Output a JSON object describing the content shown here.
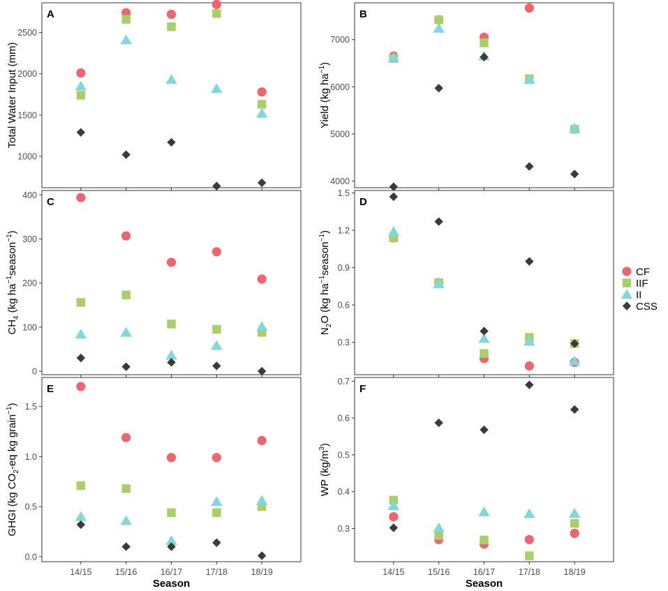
{
  "chart_data": {
    "type": "scatter",
    "seasons": [
      "14/15",
      "15/16",
      "16/17",
      "17/18",
      "18/19"
    ],
    "xlabel": "Season",
    "legend": {
      "position": "right",
      "entries": [
        {
          "name": "CF",
          "shape": "circle",
          "color": "#F0646E"
        },
        {
          "name": "IIF",
          "shape": "square",
          "color": "#A8D066"
        },
        {
          "name": "II",
          "shape": "triangle",
          "color": "#7FD8DB"
        },
        {
          "name": "CSS",
          "shape": "diamond",
          "color": "#3A3A3A"
        }
      ]
    },
    "panels": [
      {
        "tag": "A",
        "ylabel": "Total Water Input (mm)",
        "ylim": [
          620,
          2860
        ],
        "yticks": [
          1000,
          1500,
          2000,
          2500
        ],
        "ytick_labels": [
          "1000",
          "1500",
          "2000",
          "2500"
        ],
        "series": [
          {
            "name": "CF",
            "values": [
              2010,
              2740,
              2720,
              2840,
              1780
            ]
          },
          {
            "name": "IIF",
            "values": [
              1740,
              2660,
              2570,
              2730,
              1630
            ]
          },
          {
            "name": "II",
            "values": [
              1850,
              2410,
              1930,
              1820,
              1520
            ]
          },
          {
            "name": "CSS",
            "values": [
              1290,
              1020,
              1170,
              640,
              680
            ]
          }
        ]
      },
      {
        "tag": "B",
        "ylabel": "Yield (kg ha⁻¹)",
        "ylabel_parts": [
          {
            "t": "Yield (kg ha"
          },
          {
            "t": "−1",
            "sup": true
          },
          {
            "t": ")"
          }
        ],
        "ylim": [
          3860,
          7780
        ],
        "yticks": [
          4000,
          5000,
          6000,
          7000
        ],
        "ytick_labels": [
          "4000",
          "5000",
          "6000",
          "7000"
        ],
        "series": [
          {
            "name": "CF",
            "values": [
              6650,
              7420,
              7050,
              7670,
              5100
            ]
          },
          {
            "name": "IIF",
            "values": [
              6600,
              7420,
              6930,
              6170,
              5100
            ]
          },
          {
            "name": "II",
            "values": [
              6620,
              7240,
              6650,
              6150,
              5120
            ]
          },
          {
            "name": "CSS",
            "values": [
              3880,
              5970,
              6630,
              4310,
              4150
            ]
          }
        ]
      },
      {
        "tag": "C",
        "ylabel": "CH₄ (kg ha⁻¹season⁻¹)",
        "ylabel_parts": [
          {
            "t": "CH"
          },
          {
            "t": "4",
            "sub": true
          },
          {
            "t": " (kg ha"
          },
          {
            "t": "−1",
            "sup": true
          },
          {
            "t": "season"
          },
          {
            "t": "−1",
            "sup": true
          },
          {
            "t": ")"
          }
        ],
        "ylim": [
          -8,
          410
        ],
        "yticks": [
          0,
          100,
          200,
          300,
          400
        ],
        "ytick_labels": [
          "0",
          "100",
          "200",
          "300",
          "400"
        ],
        "series": [
          {
            "name": "CF",
            "values": [
              394,
              307,
              247,
              271,
              209
            ]
          },
          {
            "name": "IIF",
            "values": [
              156,
              173,
              107,
              95,
              88
            ]
          },
          {
            "name": "II",
            "values": [
              84,
              88,
              36,
              58,
              101
            ]
          },
          {
            "name": "CSS",
            "values": [
              30,
              10,
              20,
              12,
              0
            ]
          }
        ]
      },
      {
        "tag": "D",
        "ylabel": "N₂O (kg ha⁻¹season⁻¹)",
        "ylabel_parts": [
          {
            "t": "N"
          },
          {
            "t": "2",
            "sub": true
          },
          {
            "t": "O (kg ha"
          },
          {
            "t": "−1",
            "sup": true
          },
          {
            "t": "season"
          },
          {
            "t": "−1",
            "sup": true
          },
          {
            "t": ")"
          }
        ],
        "ylim": [
          0.04,
          1.52
        ],
        "yticks": [
          0.3,
          0.6,
          0.9,
          1.2,
          1.5
        ],
        "ytick_labels": [
          "0.3",
          "0.6",
          "0.9",
          "1.2",
          "1.5"
        ],
        "series": [
          {
            "name": "CF",
            "values": [
              1.14,
              0.78,
              0.17,
              0.11,
              0.14
            ]
          },
          {
            "name": "IIF",
            "values": [
              1.14,
              0.78,
              0.21,
              0.34,
              0.29
            ]
          },
          {
            "name": "II",
            "values": [
              1.19,
              0.77,
              0.33,
              0.31,
              0.15
            ]
          },
          {
            "name": "CSS",
            "values": [
              1.47,
              1.27,
              0.39,
              0.95,
              0.29
            ]
          }
        ]
      },
      {
        "tag": "E",
        "ylabel": "GHGI (kg CO₂-eq kg grain⁻¹)",
        "ylabel_parts": [
          {
            "t": "GHGI (kg CO"
          },
          {
            "t": "2",
            "sub": true
          },
          {
            "t": "-eq kg grain"
          },
          {
            "t": "−1",
            "sup": true
          },
          {
            "t": ")"
          }
        ],
        "ylim": [
          -0.05,
          1.79
        ],
        "yticks": [
          0.0,
          0.5,
          1.0,
          1.5
        ],
        "ytick_labels": [
          "0.0",
          "0.5",
          "1.0",
          "1.5"
        ],
        "series": [
          {
            "name": "CF",
            "values": [
              1.7,
              1.19,
              0.99,
              0.99,
              1.16
            ]
          },
          {
            "name": "IIF",
            "values": [
              0.71,
              0.68,
              0.44,
              0.44,
              0.5
            ]
          },
          {
            "name": "II",
            "values": [
              0.4,
              0.36,
              0.16,
              0.55,
              0.56
            ]
          },
          {
            "name": "CSS",
            "values": [
              0.32,
              0.1,
              0.1,
              0.14,
              0.01
            ]
          }
        ]
      },
      {
        "tag": "F",
        "ylabel": "WP (kg/m³)",
        "ylabel_parts": [
          {
            "t": "WP (kg/m"
          },
          {
            "t": "3",
            "sup": true
          },
          {
            "t": ")"
          }
        ],
        "ylim": [
          0.21,
          0.71
        ],
        "yticks": [
          0.3,
          0.4,
          0.5,
          0.6,
          0.7
        ],
        "ytick_labels": [
          "0.3",
          "0.4",
          "0.5",
          "0.6",
          "0.7"
        ],
        "series": [
          {
            "name": "CF",
            "values": [
              0.332,
              0.27,
              0.258,
              0.27,
              0.287
            ]
          },
          {
            "name": "IIF",
            "values": [
              0.377,
              0.281,
              0.269,
              0.226,
              0.314
            ]
          },
          {
            "name": "II",
            "values": [
              0.362,
              0.302,
              0.345,
              0.34,
              0.341
            ]
          },
          {
            "name": "CSS",
            "values": [
              0.302,
              0.587,
              0.568,
              0.69,
              0.623
            ]
          }
        ]
      }
    ]
  }
}
